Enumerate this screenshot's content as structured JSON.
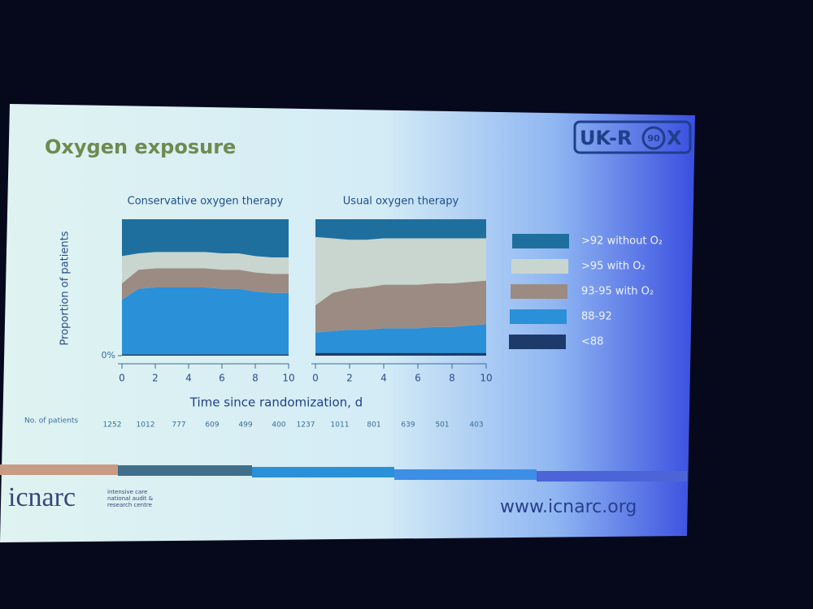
{
  "slide": {
    "title": "Oxygen exposure",
    "logo": [
      "UK-R",
      "90",
      "X"
    ],
    "y_label": "Proportion of patients",
    "x_label": "Time since randomization, d",
    "patients_label": "No. of patients",
    "footer_brand": "icnarc",
    "footer_tagline": "intensive care national audit & research centre",
    "footer_url": "www.icnarc.org"
  },
  "chart_data": [
    {
      "type": "area",
      "title": "Conservative oxygen therapy",
      "x": [
        0,
        1,
        2,
        3,
        4,
        5,
        6,
        7,
        8,
        9,
        10
      ],
      "xlim": [
        0,
        10
      ],
      "xticks": [
        0,
        2,
        4,
        6,
        8,
        10
      ],
      "ylim": [
        0,
        100
      ],
      "yticks": [
        {
          "value": 0,
          "label": "0%"
        }
      ],
      "stacked": true,
      "patient_counts": [
        1252,
        1012,
        777,
        609,
        499,
        400
      ],
      "series": [
        {
          "name": ">92 without O₂",
          "color": "#1f6f9e",
          "values": [
            27,
            25,
            24,
            24,
            24,
            24,
            25,
            25,
            27,
            28,
            28
          ]
        },
        {
          "name": ">95 with O₂",
          "color": "#c9d5cf",
          "values": [
            20,
            12,
            12,
            12,
            12,
            12,
            12,
            12,
            12,
            12,
            12
          ]
        },
        {
          "name": "93-95 with O₂",
          "color": "#9c8b82",
          "values": [
            12,
            14,
            14,
            14,
            14,
            14,
            14,
            14,
            14,
            14,
            14
          ]
        },
        {
          "name": "88-92",
          "color": "#2a90d8",
          "values": [
            40,
            48,
            49,
            49,
            49,
            49,
            48,
            48,
            46,
            45,
            45
          ]
        },
        {
          "name": "<88",
          "color": "#1c3b6b",
          "values": [
            1,
            1,
            1,
            1,
            1,
            1,
            1,
            1,
            1,
            1,
            1
          ]
        }
      ]
    },
    {
      "type": "area",
      "title": "Usual oxygen therapy",
      "x": [
        0,
        1,
        2,
        3,
        4,
        5,
        6,
        7,
        8,
        9,
        10
      ],
      "xlim": [
        0,
        10
      ],
      "xticks": [
        0,
        2,
        4,
        6,
        8,
        10
      ],
      "ylim": [
        0,
        100
      ],
      "stacked": true,
      "patient_counts": [
        1237,
        1011,
        801,
        639,
        501,
        403
      ],
      "series": [
        {
          "color": "#1f6f9e",
          "values": [
            13,
            14,
            15,
            15,
            14,
            14,
            14,
            14,
            14,
            14,
            14
          ]
        },
        {
          "color": "#c9d5cf",
          "values": [
            50,
            40,
            36,
            35,
            34,
            34,
            34,
            33,
            33,
            32,
            31
          ]
        },
        {
          "color": "#9c8b82",
          "values": [
            20,
            28,
            30,
            31,
            32,
            32,
            32,
            32,
            32,
            32,
            32
          ]
        },
        {
          "color": "#2a90d8",
          "values": [
            15,
            16,
            17,
            17,
            18,
            18,
            18,
            19,
            19,
            20,
            21
          ]
        },
        {
          "color": "#1c3b6b",
          "values": [
            2,
            2,
            2,
            2,
            2,
            2,
            2,
            2,
            2,
            2,
            2
          ]
        }
      ]
    }
  ]
}
